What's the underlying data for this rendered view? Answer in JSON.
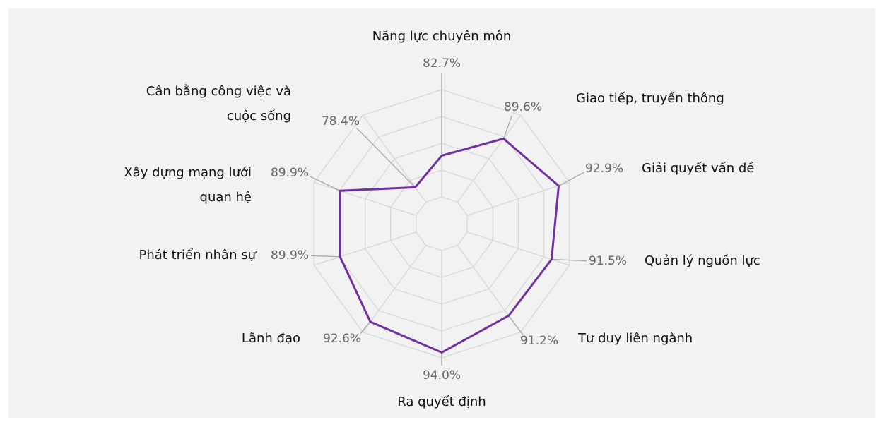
{
  "chart_data": {
    "type": "radar",
    "categories": [
      "Năng lực chuyên môn",
      "Giao tiếp, truyền thông",
      "Giải quyết vấn đề",
      "Quản lý nguồn lực",
      "Tư duy liên ngành",
      "Ra quyết định",
      "Lãnh đạo",
      "Phát triển nhân sự",
      "Xây dựng mạng lưới quan hệ",
      "Cân bằng công việc và cuộc sống"
    ],
    "values": [
      82.7,
      89.6,
      92.9,
      91.5,
      91.2,
      94.0,
      92.6,
      89.9,
      89.9,
      78.4
    ],
    "value_labels": [
      "82.7%",
      "89.6%",
      "92.9%",
      "91.5%",
      "91.2%",
      "94.0%",
      "92.6%",
      "89.9%",
      "89.9%",
      "78.4%"
    ],
    "color": "#7030a0",
    "rlim": [
      70,
      95
    ],
    "rticks": [
      70,
      75,
      80,
      85,
      90,
      95
    ],
    "grid": true
  }
}
